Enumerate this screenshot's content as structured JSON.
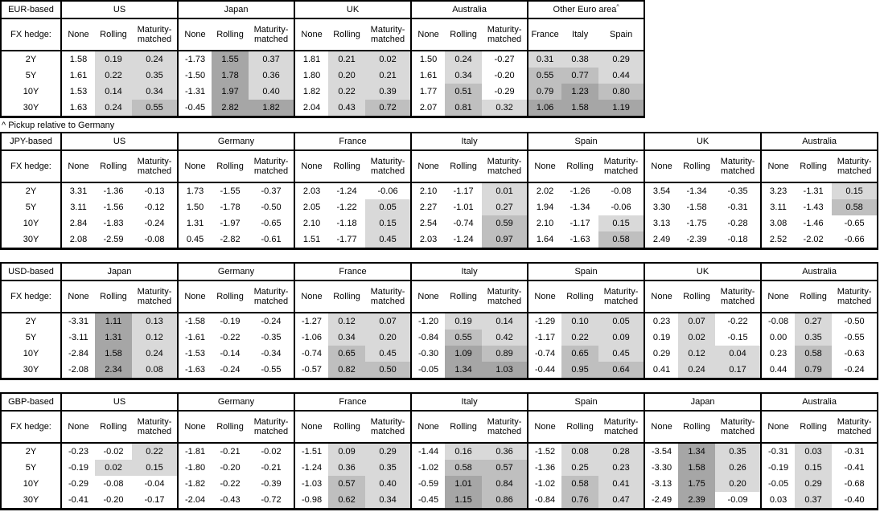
{
  "footnote": "^ Pickup relative to Germany",
  "shared": {
    "fx_hedge_label": "FX hedge:",
    "tenors": [
      "2Y",
      "5Y",
      "10Y",
      "30Y"
    ],
    "hedge_columns": [
      "None",
      "Rolling",
      "Maturity-matched"
    ]
  },
  "shading": {
    "rule": "cells in all columns except 'None' are shaded by value: v<0 white, 0<=v<0.5 light, 0.5<=v<1.0 mid, v>=1.0 high; 'Other Euro area' sub-columns are all shaded",
    "colors": {
      "white": "#ffffff",
      "light": "#d9d9d9",
      "mid": "#bfbfbf",
      "high": "#a6a6a6",
      "border": "#000000"
    }
  },
  "tables": [
    {
      "base": "EUR-based",
      "groups": [
        {
          "name": "US",
          "columns": [
            "None",
            "Rolling",
            "Maturity-matched"
          ],
          "shade_first_column": false,
          "rows": [
            [
              "1.58",
              "0.19",
              "0.24"
            ],
            [
              "1.61",
              "0.22",
              "0.35"
            ],
            [
              "1.53",
              "0.14",
              "0.34"
            ],
            [
              "1.63",
              "0.24",
              "0.55"
            ]
          ]
        },
        {
          "name": "Japan",
          "columns": [
            "None",
            "Rolling",
            "Maturity-matched"
          ],
          "shade_first_column": false,
          "rows": [
            [
              "-1.73",
              "1.55",
              "0.37"
            ],
            [
              "-1.50",
              "1.78",
              "0.36"
            ],
            [
              "-1.31",
              "1.97",
              "0.40"
            ],
            [
              "-0.45",
              "2.82",
              "1.82"
            ]
          ]
        },
        {
          "name": "UK",
          "columns": [
            "None",
            "Rolling",
            "Maturity-matched"
          ],
          "shade_first_column": false,
          "rows": [
            [
              "1.81",
              "0.21",
              "0.02"
            ],
            [
              "1.80",
              "0.20",
              "0.21"
            ],
            [
              "1.82",
              "0.22",
              "0.39"
            ],
            [
              "2.04",
              "0.43",
              "0.72"
            ]
          ]
        },
        {
          "name": "Australia",
          "columns": [
            "None",
            "Rolling",
            "Maturity-matched"
          ],
          "shade_first_column": false,
          "rows": [
            [
              "1.50",
              "0.24",
              "-0.27"
            ],
            [
              "1.61",
              "0.34",
              "-0.20"
            ],
            [
              "1.77",
              "0.51",
              "-0.29"
            ],
            [
              "2.07",
              "0.81",
              "0.32"
            ]
          ]
        },
        {
          "name": "Other Euro area",
          "sup": "^",
          "columns": [
            "France",
            "Italy",
            "Spain"
          ],
          "shade_first_column": true,
          "rows": [
            [
              "0.31",
              "0.38",
              "0.29"
            ],
            [
              "0.55",
              "0.77",
              "0.44"
            ],
            [
              "0.79",
              "1.23",
              "0.80"
            ],
            [
              "1.06",
              "1.58",
              "1.19"
            ]
          ]
        }
      ]
    },
    {
      "base": "JPY-based",
      "groups": [
        {
          "name": "US",
          "columns": [
            "None",
            "Rolling",
            "Maturity-matched"
          ],
          "shade_first_column": false,
          "rows": [
            [
              "3.31",
              "-1.36",
              "-0.13"
            ],
            [
              "3.11",
              "-1.56",
              "-0.12"
            ],
            [
              "2.84",
              "-1.83",
              "-0.24"
            ],
            [
              "2.08",
              "-2.59",
              "-0.08"
            ]
          ]
        },
        {
          "name": "Germany",
          "columns": [
            "None",
            "Rolling",
            "Maturity-matched"
          ],
          "shade_first_column": false,
          "rows": [
            [
              "1.73",
              "-1.55",
              "-0.37"
            ],
            [
              "1.50",
              "-1.78",
              "-0.50"
            ],
            [
              "1.31",
              "-1.97",
              "-0.65"
            ],
            [
              "0.45",
              "-2.82",
              "-0.61"
            ]
          ]
        },
        {
          "name": "France",
          "columns": [
            "None",
            "Rolling",
            "Maturity-matched"
          ],
          "shade_first_column": false,
          "rows": [
            [
              "2.03",
              "-1.24",
              "-0.06"
            ],
            [
              "2.05",
              "-1.22",
              "0.05"
            ],
            [
              "2.10",
              "-1.18",
              "0.15"
            ],
            [
              "1.51",
              "-1.77",
              "0.45"
            ]
          ]
        },
        {
          "name": "Italy",
          "columns": [
            "None",
            "Rolling",
            "Maturity-matched"
          ],
          "shade_first_column": false,
          "rows": [
            [
              "2.10",
              "-1.17",
              "0.01"
            ],
            [
              "2.27",
              "-1.01",
              "0.27"
            ],
            [
              "2.54",
              "-0.74",
              "0.59"
            ],
            [
              "2.03",
              "-1.24",
              "0.97"
            ]
          ]
        },
        {
          "name": "Spain",
          "columns": [
            "None",
            "Rolling",
            "Maturity-matched"
          ],
          "shade_first_column": false,
          "rows": [
            [
              "2.02",
              "-1.26",
              "-0.08"
            ],
            [
              "1.94",
              "-1.34",
              "-0.06"
            ],
            [
              "2.10",
              "-1.17",
              "0.15"
            ],
            [
              "1.64",
              "-1.63",
              "0.58"
            ]
          ]
        },
        {
          "name": "UK",
          "columns": [
            "None",
            "Rolling",
            "Maturity-matched"
          ],
          "shade_first_column": false,
          "rows": [
            [
              "3.54",
              "-1.34",
              "-0.35"
            ],
            [
              "3.30",
              "-1.58",
              "-0.31"
            ],
            [
              "3.13",
              "-1.75",
              "-0.28"
            ],
            [
              "2.49",
              "-2.39",
              "-0.18"
            ]
          ]
        },
        {
          "name": "Australia",
          "columns": [
            "None",
            "Rolling",
            "Maturity-matched"
          ],
          "shade_first_column": false,
          "rows": [
            [
              "3.23",
              "-1.31",
              "0.15"
            ],
            [
              "3.11",
              "-1.43",
              "0.58"
            ],
            [
              "3.08",
              "-1.46",
              "-0.65"
            ],
            [
              "2.52",
              "-2.02",
              "-0.66"
            ]
          ]
        }
      ]
    },
    {
      "base": "USD-based",
      "groups": [
        {
          "name": "Japan",
          "columns": [
            "None",
            "Rolling",
            "Maturity-matched"
          ],
          "shade_first_column": false,
          "rows": [
            [
              "-3.31",
              "1.11",
              "0.13"
            ],
            [
              "-3.11",
              "1.31",
              "0.12"
            ],
            [
              "-2.84",
              "1.58",
              "0.24"
            ],
            [
              "-2.08",
              "2.34",
              "0.08"
            ]
          ]
        },
        {
          "name": "Germany",
          "columns": [
            "None",
            "Rolling",
            "Maturity-matched"
          ],
          "shade_first_column": false,
          "rows": [
            [
              "-1.58",
              "-0.19",
              "-0.24"
            ],
            [
              "-1.61",
              "-0.22",
              "-0.35"
            ],
            [
              "-1.53",
              "-0.14",
              "-0.34"
            ],
            [
              "-1.63",
              "-0.24",
              "-0.55"
            ]
          ]
        },
        {
          "name": "France",
          "columns": [
            "None",
            "Rolling",
            "Maturity-matched"
          ],
          "shade_first_column": false,
          "rows": [
            [
              "-1.27",
              "0.12",
              "0.07"
            ],
            [
              "-1.06",
              "0.34",
              "0.20"
            ],
            [
              "-0.74",
              "0.65",
              "0.45"
            ],
            [
              "-0.57",
              "0.82",
              "0.50"
            ]
          ]
        },
        {
          "name": "Italy",
          "columns": [
            "None",
            "Rolling",
            "Maturity-matched"
          ],
          "shade_first_column": false,
          "rows": [
            [
              "-1.20",
              "0.19",
              "0.14"
            ],
            [
              "-0.84",
              "0.55",
              "0.42"
            ],
            [
              "-0.30",
              "1.09",
              "0.89"
            ],
            [
              "-0.05",
              "1.34",
              "1.03"
            ]
          ]
        },
        {
          "name": "Spain",
          "columns": [
            "None",
            "Rolling",
            "Maturity-matched"
          ],
          "shade_first_column": false,
          "rows": [
            [
              "-1.29",
              "0.10",
              "0.05"
            ],
            [
              "-1.17",
              "0.22",
              "0.09"
            ],
            [
              "-0.74",
              "0.65",
              "0.45"
            ],
            [
              "-0.44",
              "0.95",
              "0.64"
            ]
          ]
        },
        {
          "name": "UK",
          "columns": [
            "None",
            "Rolling",
            "Maturity-matched"
          ],
          "shade_first_column": false,
          "rows": [
            [
              "0.23",
              "0.07",
              "-0.22"
            ],
            [
              "0.19",
              "0.02",
              "-0.15"
            ],
            [
              "0.29",
              "0.12",
              "0.04"
            ],
            [
              "0.41",
              "0.24",
              "0.17"
            ]
          ]
        },
        {
          "name": "Australia",
          "columns": [
            "None",
            "Rolling",
            "Maturity-matched"
          ],
          "shade_first_column": false,
          "rows": [
            [
              "-0.08",
              "0.27",
              "-0.50"
            ],
            [
              "0.00",
              "0.35",
              "-0.55"
            ],
            [
              "0.23",
              "0.58",
              "-0.63"
            ],
            [
              "0.44",
              "0.79",
              "-0.24"
            ]
          ]
        }
      ]
    },
    {
      "base": "GBP-based",
      "groups": [
        {
          "name": "US",
          "columns": [
            "None",
            "Rolling",
            "Maturity-matched"
          ],
          "shade_first_column": false,
          "rows": [
            [
              "-0.23",
              "-0.02",
              "0.22"
            ],
            [
              "-0.19",
              "0.02",
              "0.15"
            ],
            [
              "-0.29",
              "-0.08",
              "-0.04"
            ],
            [
              "-0.41",
              "-0.20",
              "-0.17"
            ]
          ]
        },
        {
          "name": "Germany",
          "columns": [
            "None",
            "Rolling",
            "Maturity-matched"
          ],
          "shade_first_column": false,
          "rows": [
            [
              "-1.81",
              "-0.21",
              "-0.02"
            ],
            [
              "-1.80",
              "-0.20",
              "-0.21"
            ],
            [
              "-1.82",
              "-0.22",
              "-0.39"
            ],
            [
              "-2.04",
              "-0.43",
              "-0.72"
            ]
          ]
        },
        {
          "name": "France",
          "columns": [
            "None",
            "Rolling",
            "Maturity-matched"
          ],
          "shade_first_column": false,
          "rows": [
            [
              "-1.51",
              "0.09",
              "0.29"
            ],
            [
              "-1.24",
              "0.36",
              "0.35"
            ],
            [
              "-1.03",
              "0.57",
              "0.40"
            ],
            [
              "-0.98",
              "0.62",
              "0.34"
            ]
          ]
        },
        {
          "name": "Italy",
          "columns": [
            "None",
            "Rolling",
            "Maturity-matched"
          ],
          "shade_first_column": false,
          "rows": [
            [
              "-1.44",
              "0.16",
              "0.36"
            ],
            [
              "-1.02",
              "0.58",
              "0.57"
            ],
            [
              "-0.59",
              "1.01",
              "0.84"
            ],
            [
              "-0.45",
              "1.15",
              "0.86"
            ]
          ]
        },
        {
          "name": "Spain",
          "columns": [
            "None",
            "Rolling",
            "Maturity-matched"
          ],
          "shade_first_column": false,
          "rows": [
            [
              "-1.52",
              "0.08",
              "0.28"
            ],
            [
              "-1.36",
              "0.25",
              "0.23"
            ],
            [
              "-1.02",
              "0.58",
              "0.41"
            ],
            [
              "-0.84",
              "0.76",
              "0.47"
            ]
          ]
        },
        {
          "name": "Japan",
          "columns": [
            "None",
            "Rolling",
            "Maturity-matched"
          ],
          "shade_first_column": false,
          "rows": [
            [
              "-3.54",
              "1.34",
              "0.35"
            ],
            [
              "-3.30",
              "1.58",
              "0.26"
            ],
            [
              "-3.13",
              "1.75",
              "0.20"
            ],
            [
              "-2.49",
              "2.39",
              "-0.09"
            ]
          ]
        },
        {
          "name": "Australia",
          "columns": [
            "None",
            "Rolling",
            "Maturity-matched"
          ],
          "shade_first_column": false,
          "rows": [
            [
              "-0.31",
              "0.03",
              "-0.31"
            ],
            [
              "-0.19",
              "0.15",
              "-0.41"
            ],
            [
              "-0.05",
              "0.29",
              "-0.68"
            ],
            [
              "0.03",
              "0.37",
              "-0.40"
            ]
          ]
        }
      ]
    }
  ]
}
